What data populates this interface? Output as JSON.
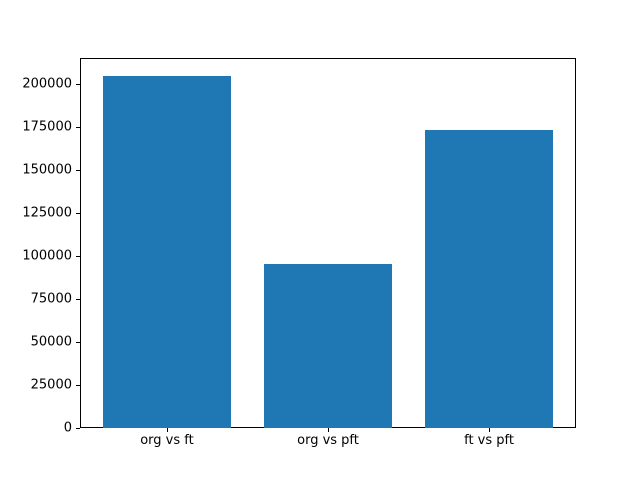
{
  "chart_data": {
    "type": "bar",
    "title": "",
    "categories": [
      "org vs ft",
      "org vs pft",
      "ft vs pft"
    ],
    "values": [
      205000,
      95500,
      173500
    ],
    "xlabel": "",
    "ylabel": "",
    "ylim": [
      0,
      215250
    ],
    "yticks": [
      0,
      25000,
      50000,
      75000,
      100000,
      125000,
      150000,
      175000,
      200000
    ],
    "ytick_labels": [
      "0",
      "25000",
      "50000",
      "75000",
      "100000",
      "125000",
      "150000",
      "175000",
      "200000"
    ],
    "bar_color": "#1f77b4",
    "axis_color": "#000000",
    "background_color": "#ffffff",
    "grid": false,
    "legend": null
  }
}
